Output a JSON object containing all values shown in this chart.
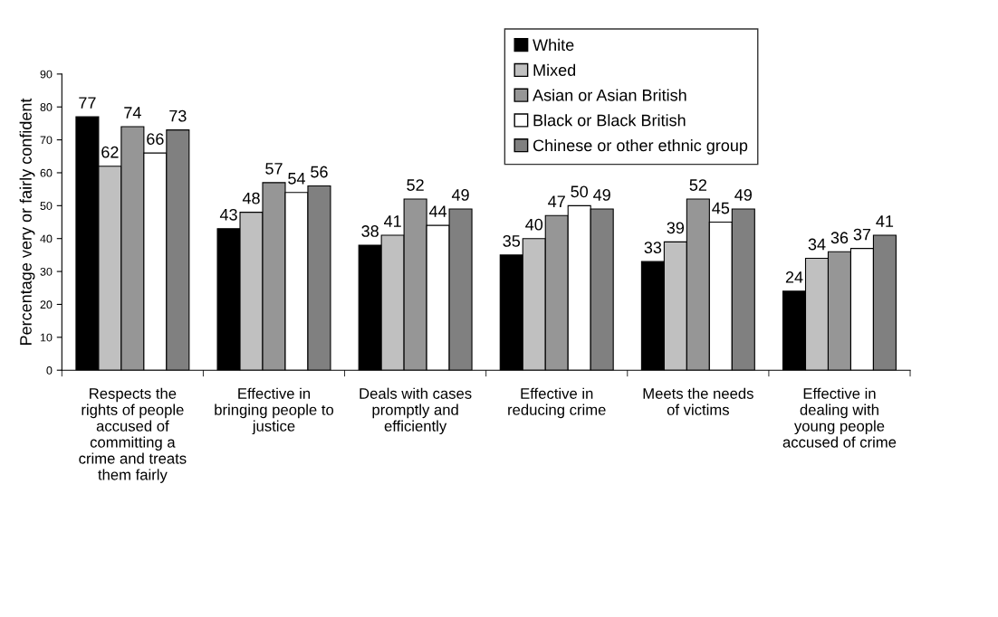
{
  "chart_data": {
    "type": "bar",
    "ylabel": "Percentage very or fairly confident",
    "categories": [
      "Respects the\nrights of people\naccused of\ncommitting a\ncrime and treats\nthem fairly",
      "Effective in\nbringing people to\njustice",
      "Deals with cases\npromptly and\nefficiently",
      "Effective in\nreducing crime",
      "Meets the needs\nof victims",
      "Effective in\ndealing with\nyoung people\naccused of crime"
    ],
    "series": [
      {
        "name": "White",
        "color": "#000000",
        "values": [
          77,
          43,
          38,
          35,
          33,
          24
        ]
      },
      {
        "name": "Mixed",
        "color": "#c0c0c0",
        "values": [
          62,
          48,
          41,
          40,
          39,
          34
        ]
      },
      {
        "name": "Asian or Asian British",
        "color": "#969696",
        "values": [
          74,
          57,
          52,
          47,
          52,
          36
        ]
      },
      {
        "name": "Black or Black British",
        "color": "#ffffff",
        "values": [
          66,
          54,
          44,
          50,
          45,
          37
        ]
      },
      {
        "name": "Chinese or other ethnic group",
        "color": "#808080",
        "values": [
          73,
          56,
          49,
          49,
          49,
          41
        ]
      }
    ],
    "ylim": [
      0,
      90
    ],
    "yticks": [
      0,
      10,
      20,
      30,
      40,
      50,
      60,
      70,
      80,
      90
    ],
    "data_labels": true,
    "legend": "top right",
    "grid": false
  }
}
